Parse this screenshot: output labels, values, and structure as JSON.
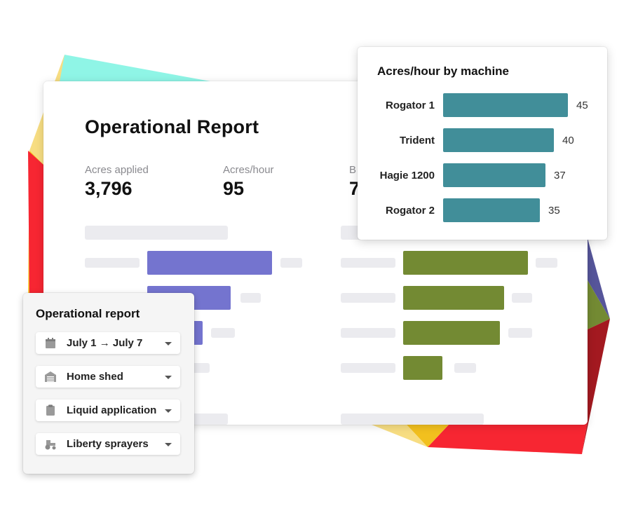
{
  "colors": {
    "purple_bars": "#7474cf",
    "olive_bars": "#738a33",
    "teal_bars": "#418e99"
  },
  "report": {
    "title": "Operational Report",
    "stats": [
      {
        "label": "Acres applied",
        "value": "3,796"
      },
      {
        "label": "Acres/hour",
        "value": "95"
      },
      {
        "label": "B",
        "value": "7"
      }
    ]
  },
  "popup": {
    "title": "Acres/hour by machine",
    "machines": [
      {
        "name": "Rogator 1",
        "value": "45"
      },
      {
        "name": "Trident",
        "value": "40"
      },
      {
        "name": "Hagie 1200",
        "value": "37"
      },
      {
        "name": "Rogator 2",
        "value": "35"
      }
    ]
  },
  "filters": {
    "title": "Operational report",
    "items": [
      {
        "label": "July 1 → July 7",
        "icon": "calendar-icon"
      },
      {
        "label": "Home shed",
        "icon": "shed-icon"
      },
      {
        "label": "Liquid application",
        "icon": "clipboard-icon"
      },
      {
        "label": "Liberty sprayers",
        "icon": "tractor-icon"
      }
    ]
  },
  "chart_data": {
    "type": "bar",
    "title": "Acres/hour by machine",
    "categories": [
      "Rogator 1",
      "Trident",
      "Hagie 1200",
      "Rogator 2"
    ],
    "values": [
      45,
      40,
      37,
      35
    ],
    "xlabel": "",
    "ylabel": "",
    "orientation": "horizontal",
    "grid": false
  }
}
